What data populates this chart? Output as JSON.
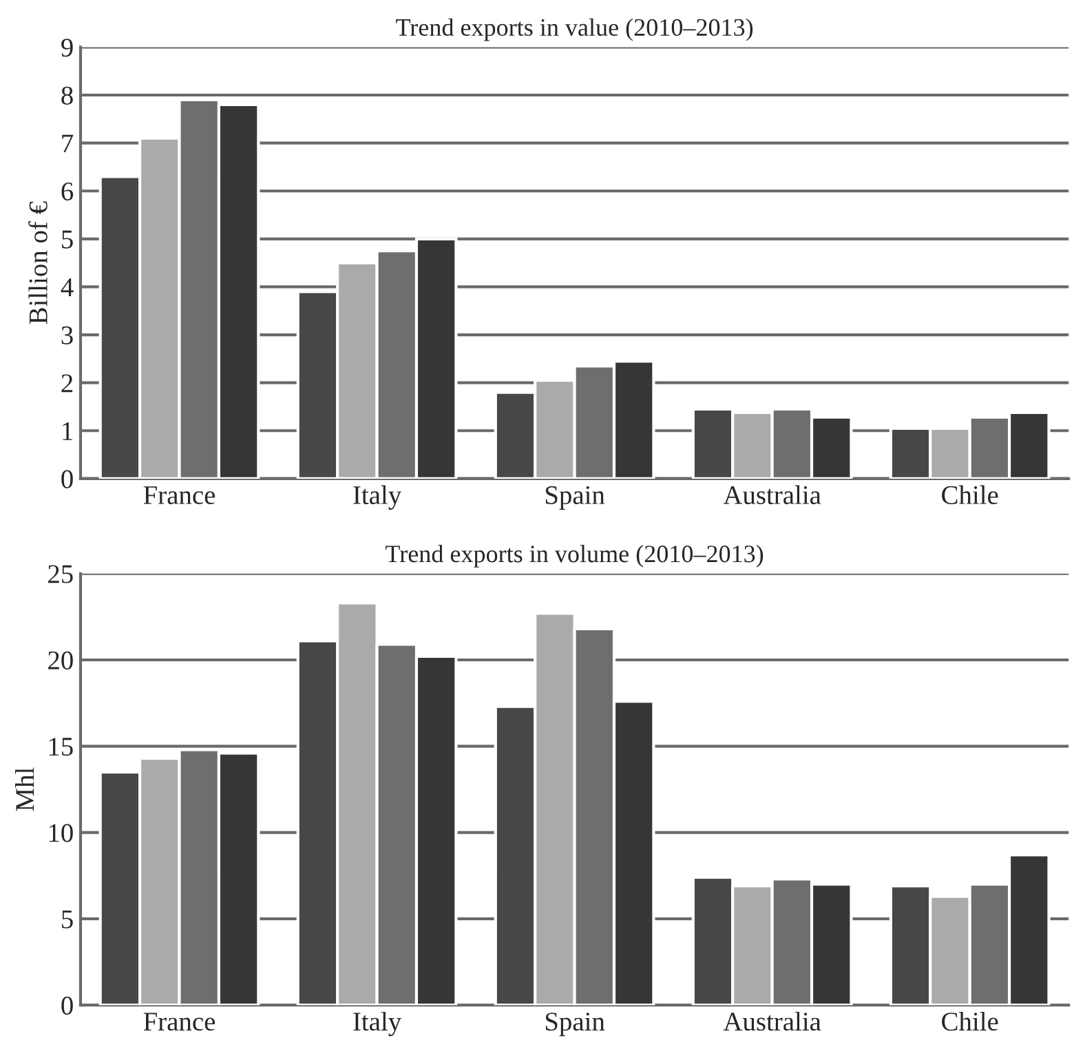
{
  "chart_data": [
    {
      "type": "bar",
      "title": "Trend exports in value (2010–2013)",
      "ylabel": "Billion of €",
      "categories": [
        "France",
        "Italy",
        "Spain",
        "Australia",
        "Chile"
      ],
      "series": [
        {
          "color": "#474747",
          "values": [
            6.3,
            3.9,
            1.8,
            1.45,
            1.05
          ]
        },
        {
          "color": "#aaaaaa",
          "values": [
            7.1,
            4.5,
            2.05,
            1.38,
            1.05
          ]
        },
        {
          "color": "#6e6e6e",
          "values": [
            7.9,
            4.75,
            2.35,
            1.45,
            1.28
          ]
        },
        {
          "color": "#363636",
          "values": [
            7.8,
            5.0,
            2.45,
            1.28,
            1.38
          ]
        }
      ],
      "ylim": [
        0,
        9
      ],
      "yticks": [
        0,
        1,
        2,
        3,
        4,
        5,
        6,
        7,
        8,
        9
      ],
      "grid": "y"
    },
    {
      "type": "bar",
      "title": "Trend exports in volume (2010–2013)",
      "ylabel": "Mhl",
      "categories": [
        "France",
        "Italy",
        "Spain",
        "Australia",
        "Chile"
      ],
      "series": [
        {
          "color": "#474747",
          "values": [
            13.5,
            21.1,
            17.3,
            7.4,
            6.9
          ]
        },
        {
          "color": "#aaaaaa",
          "values": [
            14.3,
            23.3,
            22.7,
            6.9,
            6.3
          ]
        },
        {
          "color": "#6e6e6e",
          "values": [
            14.8,
            20.9,
            21.8,
            7.3,
            7.0
          ]
        },
        {
          "color": "#363636",
          "values": [
            14.6,
            20.2,
            17.6,
            7.0,
            8.7
          ]
        }
      ],
      "ylim": [
        0,
        25
      ],
      "yticks": [
        0,
        5,
        10,
        15,
        20,
        25
      ],
      "grid": "y"
    }
  ]
}
